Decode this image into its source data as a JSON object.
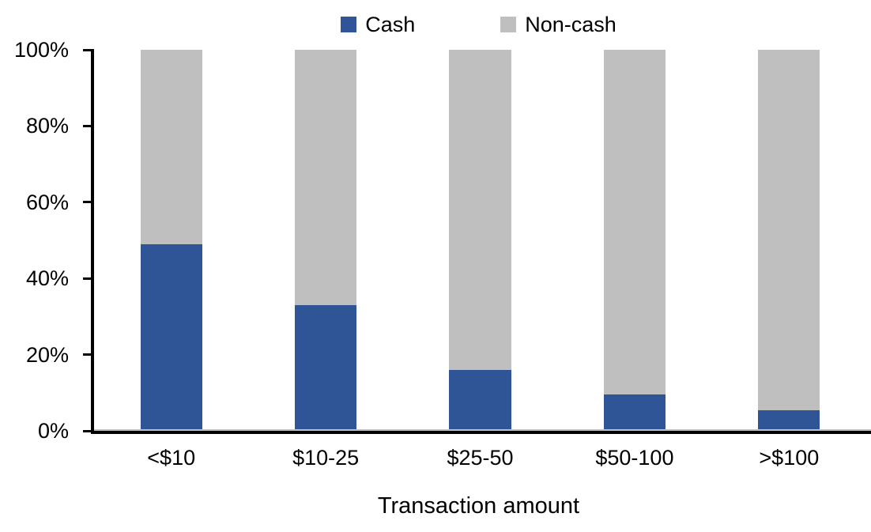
{
  "chart_data": {
    "type": "bar",
    "stacked": true,
    "normalized": "percent",
    "title": "",
    "xlabel": "Transaction amount",
    "ylabel": "",
    "categories": [
      "<$10",
      "$10-25",
      "$25-50",
      "$50-100",
      ">$100"
    ],
    "series": [
      {
        "name": "Cash",
        "color": "#2F5597",
        "values": [
          49,
          33,
          16,
          9.5,
          5.5
        ]
      },
      {
        "name": "Non-cash",
        "color": "#BFBFBF",
        "values": [
          51,
          67,
          84,
          90.5,
          94.5
        ]
      }
    ],
    "ylim": [
      0,
      100
    ],
    "yticks": [
      0,
      20,
      40,
      60,
      80,
      100
    ],
    "ytick_labels": [
      "0%",
      "20%",
      "40%",
      "60%",
      "80%",
      "100%"
    ],
    "legend_position": "top-center",
    "grid": false,
    "bar_width_fraction": 0.4,
    "axis_color": "#000000",
    "zero_line_color": "#C0C0C0",
    "background": "#FFFFFF"
  }
}
